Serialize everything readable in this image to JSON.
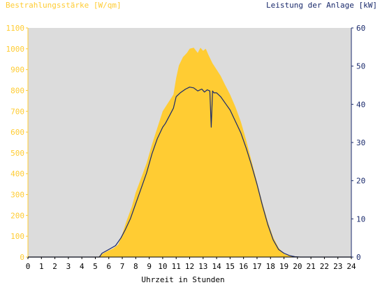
{
  "chart_data": {
    "type": "area",
    "title_left": "Bestrahlungsstärke [W/qm]",
    "title_right": "Leistung der Anlage [kW]",
    "xlabel": "Uhrzeit in Stunden",
    "xlim": [
      0,
      24
    ],
    "x_ticks": [
      "0",
      "1",
      "2",
      "3",
      "4",
      "5",
      "6",
      "7",
      "8",
      "9",
      "10",
      "11",
      "12",
      "13",
      "14",
      "15",
      "16",
      "17",
      "18",
      "19",
      "20",
      "21",
      "22",
      "23",
      "24"
    ],
    "y_left": {
      "lim": [
        0,
        1100
      ],
      "ticks": [
        "0",
        "100",
        "200",
        "300",
        "400",
        "500",
        "600",
        "700",
        "800",
        "900",
        "1000",
        "1100"
      ]
    },
    "y_right": {
      "lim": [
        0,
        60
      ],
      "ticks": [
        "0",
        "10",
        "20",
        "30",
        "40",
        "50",
        "60"
      ]
    },
    "grid": false,
    "colors": {
      "plot_background": "#dcdcdc",
      "irradiance_fill": "#ffcc33",
      "power_line": "#1a2a6c",
      "left_axis": "#ffcc33",
      "right_axis": "#1a2a6c"
    },
    "series": [
      {
        "axis": "left",
        "style": "area",
        "x": [
          0,
          5.2,
          5.4,
          5.8,
          6.3,
          6.7,
          7.0,
          7.3,
          7.7,
          8.0,
          8.4,
          8.8,
          9.2,
          9.6,
          10.0,
          10.4,
          10.8,
          11.0,
          11.2,
          11.5,
          11.8,
          12.0,
          12.3,
          12.6,
          12.8,
          13.0,
          13.2,
          13.4,
          13.7,
          14.0,
          14.3,
          14.6,
          15.0,
          15.4,
          15.8,
          16.2,
          16.6,
          17.0,
          17.4,
          17.8,
          18.2,
          18.6,
          19.0,
          19.4,
          19.8,
          20.2,
          20.4,
          24
        ],
        "values": [
          0,
          0,
          10,
          25,
          40,
          60,
          110,
          170,
          240,
          310,
          380,
          450,
          540,
          620,
          700,
          740,
          780,
          860,
          920,
          960,
          980,
          1000,
          1005,
          980,
          1005,
          990,
          1000,
          970,
          930,
          900,
          870,
          830,
          780,
          720,
          650,
          560,
          460,
          360,
          260,
          170,
          95,
          45,
          15,
          5,
          2,
          0,
          0,
          0
        ]
      },
      {
        "axis": "right",
        "style": "line",
        "x": [
          0,
          5.3,
          5.5,
          6.0,
          6.5,
          6.9,
          7.2,
          7.6,
          8.0,
          8.4,
          8.8,
          9.2,
          9.6,
          10.0,
          10.2,
          10.5,
          10.8,
          11.0,
          11.3,
          11.7,
          12.0,
          12.3,
          12.6,
          12.9,
          13.1,
          13.3,
          13.5,
          13.6,
          13.7,
          13.8,
          14.0,
          14.3,
          14.7,
          15.0,
          15.4,
          15.8,
          16.2,
          16.6,
          17.0,
          17.4,
          17.8,
          18.2,
          18.6,
          19.0,
          19.4,
          19.8,
          20.2,
          24
        ],
        "values": [
          0,
          0,
          1,
          2,
          3,
          5,
          7,
          10,
          14,
          18,
          22,
          27,
          31,
          34,
          35,
          37,
          39,
          42,
          43,
          44,
          44.5,
          44.3,
          43.5,
          44,
          43.2,
          43.8,
          43.5,
          34,
          43.5,
          43,
          43,
          42,
          40,
          38.5,
          35.5,
          32.5,
          28.5,
          24,
          19,
          13.5,
          8.5,
          4.5,
          2,
          1,
          0.4,
          0.1,
          0,
          0
        ]
      }
    ]
  }
}
